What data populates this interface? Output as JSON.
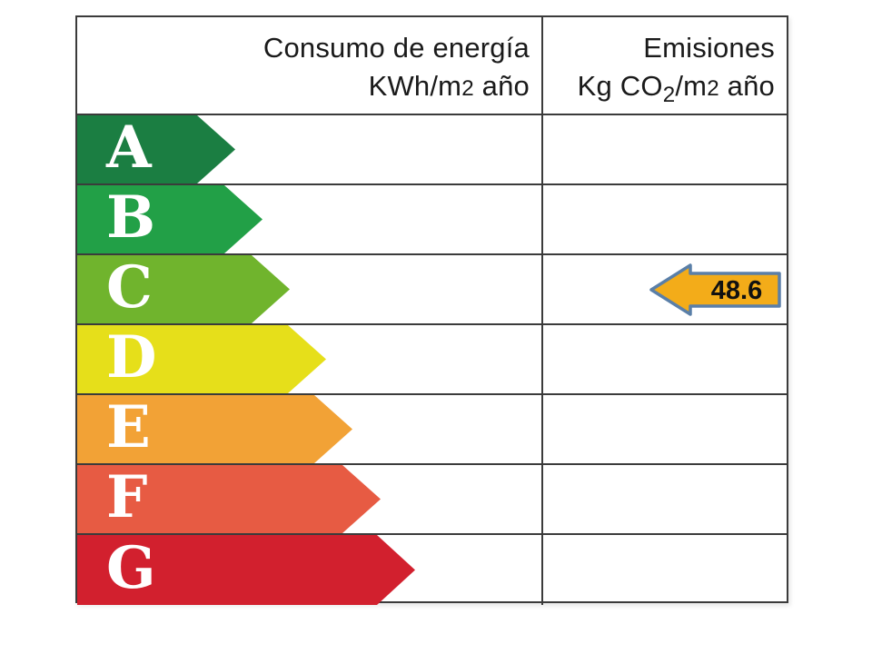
{
  "header": {
    "consumption": {
      "line1": "Consumo de energía",
      "line2": [
        {
          "t": "KWh/m"
        },
        {
          "t": "2",
          "style": "num"
        },
        {
          "t": " año"
        }
      ]
    },
    "emissions": {
      "line1": "Emisiones",
      "line2": [
        {
          "t": "Kg CO"
        },
        {
          "t": "2",
          "style": "sub"
        },
        {
          "t": "/m"
        },
        {
          "t": "2",
          "style": "num"
        },
        {
          "t": " año"
        }
      ]
    }
  },
  "ratings": [
    {
      "letter": "A",
      "color": "#1b7e42",
      "arrow_width": 174
    },
    {
      "letter": "B",
      "color": "#22a047",
      "arrow_width": 204
    },
    {
      "letter": "C",
      "color": "#70b42d",
      "arrow_width": 234
    },
    {
      "letter": "D",
      "color": "#e6df1a",
      "arrow_width": 274
    },
    {
      "letter": "E",
      "color": "#f2a236",
      "arrow_width": 303
    },
    {
      "letter": "F",
      "color": "#e75b43",
      "arrow_width": 334
    },
    {
      "letter": "G",
      "color": "#d2202e",
      "arrow_width": 372
    }
  ],
  "value_marker": {
    "value": "48.6",
    "row_letter": "C",
    "column": "emissions",
    "fill": "#f3ac19",
    "border": "#5a7fa8"
  },
  "colors": {
    "table_border": "#3b3b3b",
    "background": "#ffffff",
    "letter_text": "#ffffff",
    "header_text": "#1a1a1a"
  },
  "chart_data": {
    "type": "table",
    "title": "",
    "columns": [
      "Consumo de energía KWh/m2 año",
      "Emisiones Kg CO2/m2 año"
    ],
    "categories": [
      "A",
      "B",
      "C",
      "D",
      "E",
      "F",
      "G"
    ],
    "category_colors": [
      "#1b7e42",
      "#22a047",
      "#70b42d",
      "#e6df1a",
      "#f2a236",
      "#e75b43",
      "#d2202e"
    ],
    "series": [
      {
        "name": "Consumo de energía KWh/m2 año",
        "values": [
          null,
          null,
          null,
          null,
          null,
          null,
          null
        ]
      },
      {
        "name": "Emisiones Kg CO2/m2 año",
        "values": [
          null,
          null,
          48.6,
          null,
          null,
          null,
          null
        ]
      }
    ],
    "annotations": [
      {
        "text": "48.6",
        "rating": "C",
        "column": "Emisiones Kg CO2/m2 año",
        "marker": "left-arrow"
      }
    ],
    "legend_position": "none",
    "grid": "table-lines"
  }
}
